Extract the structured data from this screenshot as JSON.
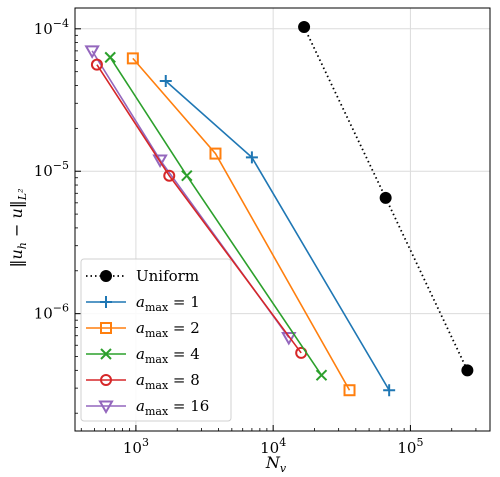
{
  "chart_data": {
    "type": "line",
    "xscale": "log",
    "yscale": "log",
    "xlim": [
      360,
      380000
    ],
    "ylim": [
      1.5e-07,
      0.00014
    ],
    "xticks": [
      {
        "value": 1000,
        "base": "10",
        "exp": "3"
      },
      {
        "value": 10000,
        "base": "10",
        "exp": "4"
      },
      {
        "value": 100000,
        "base": "10",
        "exp": "5"
      }
    ],
    "yticks": [
      {
        "value": 1e-06,
        "base": "10",
        "exp": "−6"
      },
      {
        "value": 1e-05,
        "base": "10",
        "exp": "−5"
      },
      {
        "value": 0.0001,
        "base": "10",
        "exp": "−4"
      }
    ],
    "xlabel": {
      "base": "N",
      "sub": "v"
    },
    "ylabel": {
      "text": "‖u",
      "sub1": "h",
      "mid": " − u‖",
      "sub2": "L²"
    },
    "grid": true,
    "legend_position": "lower-left",
    "series": [
      {
        "name": "Uniform",
        "color": "#000000",
        "marker": "circle-filled",
        "dash": "dotted",
        "x": [
          16800,
          66000,
          260000
        ],
        "y": [
          0.000103,
          6.5e-06,
          4e-07
        ]
      },
      {
        "name": "amax=1",
        "label_base": "a",
        "label_sub": "max",
        "label_rest": " = 1",
        "color": "#1f77b4",
        "marker": "plus",
        "dash": "solid",
        "x": [
          1650,
          7000,
          70000
        ],
        "y": [
          4.3e-05,
          1.25e-05,
          2.9e-07
        ]
      },
      {
        "name": "amax=2",
        "label_base": "a",
        "label_sub": "max",
        "label_rest": " = 2",
        "color": "#ff7f0e",
        "marker": "square",
        "dash": "solid",
        "x": [
          950,
          3800,
          36000
        ],
        "y": [
          6.2e-05,
          1.33e-05,
          2.9e-07
        ]
      },
      {
        "name": "amax=4",
        "label_base": "a",
        "label_sub": "max",
        "label_rest": " = 4",
        "color": "#2ca02c",
        "marker": "x",
        "dash": "solid",
        "x": [
          650,
          2350,
          22500
        ],
        "y": [
          6.3e-05,
          9.3e-06,
          3.7e-07
        ]
      },
      {
        "name": "amax=8",
        "label_base": "a",
        "label_sub": "max",
        "label_rest": " = 8",
        "color": "#d62728",
        "marker": "circle-open",
        "dash": "solid",
        "x": [
          520,
          1750,
          16000
        ],
        "y": [
          5.6e-05,
          9.3e-06,
          5.3e-07
        ]
      },
      {
        "name": "amax=16",
        "label_base": "a",
        "label_sub": "max",
        "label_rest": " = 16",
        "color": "#9467bd",
        "marker": "triangle-down",
        "dash": "solid",
        "x": [
          480,
          1500,
          13000
        ],
        "y": [
          7e-05,
          1.2e-05,
          6.8e-07
        ]
      }
    ]
  }
}
